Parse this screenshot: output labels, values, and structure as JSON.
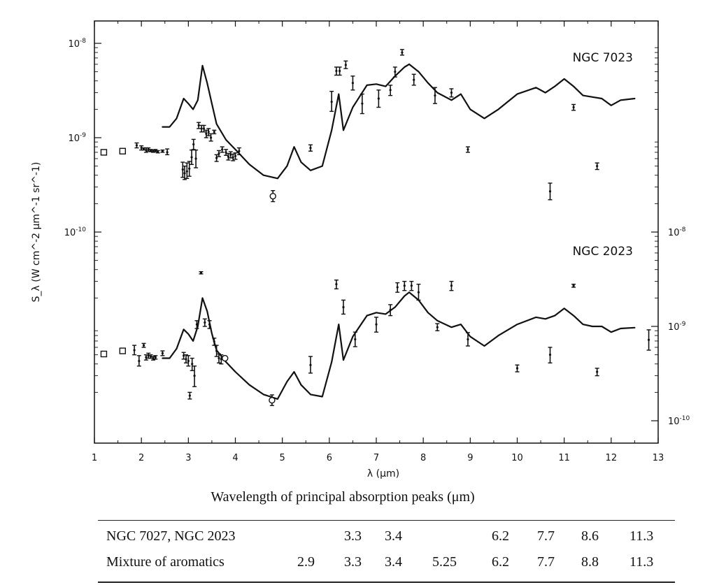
{
  "chart_data": {
    "type": "line",
    "xlabel": "λ (μm)",
    "ylabel": "S_λ (W cm^-2 μm^-1 sr^-1)",
    "xlim": [
      1,
      13
    ],
    "x_ticks": [
      "1",
      "2",
      "3",
      "4",
      "5",
      "6",
      "7",
      "8",
      "9",
      "10",
      "11",
      "12",
      "13"
    ],
    "log_scale_y": true,
    "left_y_ticks": [
      "10^-8",
      "10^-9",
      "10^-10"
    ],
    "right_y_ticks": [
      "10^-8",
      "10^-9",
      "10^-10"
    ],
    "grid": false,
    "panels": [
      {
        "label": "NGC 7023",
        "ylim": [
          1e-10,
          1e-08
        ],
        "model_curve": {
          "x": [
            2.45,
            2.6,
            2.75,
            2.9,
            3.0,
            3.1,
            3.2,
            3.3,
            3.4,
            3.5,
            3.6,
            3.8,
            4.0,
            4.3,
            4.6,
            4.9,
            5.1,
            5.25,
            5.4,
            5.6,
            5.85,
            6.05,
            6.2,
            6.3,
            6.5,
            6.8,
            7.0,
            7.2,
            7.4,
            7.6,
            7.7,
            7.9,
            8.1,
            8.3,
            8.6,
            8.8,
            9.0,
            9.3,
            9.6,
            10.0,
            10.4,
            10.6,
            10.8,
            11.0,
            11.2,
            11.4,
            11.6,
            11.8,
            12.0,
            12.2,
            12.5
          ],
          "y": [
            1.3e-09,
            1.3e-09,
            1.6e-09,
            2.6e-09,
            2.3e-09,
            2e-09,
            2.5e-09,
            5.8e-09,
            3.8e-09,
            2.3e-09,
            1.4e-09,
            9.5e-10,
            7.5e-10,
            5.2e-10,
            4e-10,
            3.7e-10,
            5e-10,
            8e-10,
            5.5e-10,
            4.5e-10,
            5e-10,
            1.2e-09,
            2.9e-09,
            1.2e-09,
            2.1e-09,
            3.6e-09,
            3.7e-09,
            3.5e-09,
            4.5e-09,
            5.6e-09,
            6e-09,
            5e-09,
            3.8e-09,
            3e-09,
            2.5e-09,
            2.9e-09,
            2e-09,
            1.6e-09,
            2e-09,
            2.9e-09,
            3.4e-09,
            3e-09,
            3.5e-09,
            4.2e-09,
            3.5e-09,
            2.8e-09,
            2.7e-09,
            2.6e-09,
            2.2e-09,
            2.5e-09,
            2.6e-09
          ]
        },
        "measurements": [
          {
            "x": 1.2,
            "y": 7e-10,
            "lo": 7e-10,
            "hi": 7e-10,
            "marker": "square"
          },
          {
            "x": 1.6,
            "y": 7.2e-10,
            "lo": 7.2e-10,
            "hi": 7.2e-10,
            "marker": "square"
          },
          {
            "x": 1.9,
            "y": 8.3e-10,
            "lo": 7.8e-10,
            "hi": 8.8e-10
          },
          {
            "x": 2.0,
            "y": 7.8e-10,
            "lo": 7.4e-10,
            "hi": 8.2e-10
          },
          {
            "x": 2.05,
            "y": 7.6e-10,
            "lo": 7.4e-10,
            "hi": 7.8e-10
          },
          {
            "x": 2.1,
            "y": 7.4e-10,
            "lo": 7e-10,
            "hi": 7.8e-10
          },
          {
            "x": 2.15,
            "y": 7.5e-10,
            "lo": 7.2e-10,
            "hi": 7.8e-10
          },
          {
            "x": 2.2,
            "y": 7.3e-10,
            "lo": 7.1e-10,
            "hi": 7.5e-10
          },
          {
            "x": 2.25,
            "y": 7.2e-10,
            "lo": 7e-10,
            "hi": 7.4e-10
          },
          {
            "x": 2.3,
            "y": 7.3e-10,
            "lo": 7.1e-10,
            "hi": 7.5e-10
          },
          {
            "x": 2.35,
            "y": 7.1e-10,
            "lo": 6.9e-10,
            "hi": 7.3e-10
          },
          {
            "x": 2.45,
            "y": 7.2e-10,
            "lo": 7e-10,
            "hi": 7.4e-10
          },
          {
            "x": 2.55,
            "y": 7e-10,
            "lo": 6.6e-10,
            "hi": 7.6e-10
          },
          {
            "x": 2.88,
            "y": 4.6e-10,
            "lo": 3.8e-10,
            "hi": 5.5e-10
          },
          {
            "x": 2.92,
            "y": 4.2e-10,
            "lo": 3.6e-10,
            "hi": 5e-10
          },
          {
            "x": 2.97,
            "y": 4.4e-10,
            "lo": 3.7e-10,
            "hi": 5.4e-10
          },
          {
            "x": 3.02,
            "y": 4.7e-10,
            "lo": 3.9e-10,
            "hi": 5.6e-10
          },
          {
            "x": 3.07,
            "y": 6.2e-10,
            "lo": 5.2e-10,
            "hi": 7.4e-10
          },
          {
            "x": 3.11,
            "y": 8.5e-10,
            "lo": 7.5e-10,
            "hi": 9.6e-10
          },
          {
            "x": 3.16,
            "y": 6e-10,
            "lo": 4.8e-10,
            "hi": 7.4e-10
          },
          {
            "x": 3.22,
            "y": 1.35e-09,
            "lo": 1.25e-09,
            "hi": 1.45e-09
          },
          {
            "x": 3.28,
            "y": 1.25e-09,
            "lo": 1.15e-09,
            "hi": 1.35e-09
          },
          {
            "x": 3.33,
            "y": 1.25e-09,
            "lo": 1.15e-09,
            "hi": 1.35e-09
          },
          {
            "x": 3.38,
            "y": 1.1e-09,
            "lo": 1e-09,
            "hi": 1.2e-09
          },
          {
            "x": 3.43,
            "y": 1.15e-09,
            "lo": 1.05e-09,
            "hi": 1.25e-09
          },
          {
            "x": 3.48,
            "y": 1e-09,
            "lo": 9.2e-10,
            "hi": 1.1e-09
          },
          {
            "x": 3.55,
            "y": 1.15e-09,
            "lo": 1.1e-09,
            "hi": 1.2e-09
          },
          {
            "x": 3.6,
            "y": 6.1e-10,
            "lo": 5.6e-10,
            "hi": 6.6e-10
          },
          {
            "x": 3.65,
            "y": 6.8e-10,
            "lo": 6.3e-10,
            "hi": 7.3e-10
          },
          {
            "x": 3.72,
            "y": 7.5e-10,
            "lo": 7e-10,
            "hi": 8e-10
          },
          {
            "x": 3.8,
            "y": 7e-10,
            "lo": 6.5e-10,
            "hi": 7.5e-10
          },
          {
            "x": 3.85,
            "y": 6.3e-10,
            "lo": 5.8e-10,
            "hi": 6.8e-10
          },
          {
            "x": 3.9,
            "y": 6.6e-10,
            "lo": 6.1e-10,
            "hi": 7.1e-10
          },
          {
            "x": 3.95,
            "y": 6.2e-10,
            "lo": 5.7e-10,
            "hi": 6.7e-10
          },
          {
            "x": 4.0,
            "y": 6.4e-10,
            "lo": 5.9e-10,
            "hi": 6.9e-10
          },
          {
            "x": 4.08,
            "y": 7.2e-10,
            "lo": 6.6e-10,
            "hi": 7.8e-10
          },
          {
            "x": 4.8,
            "y": 2.4e-10,
            "lo": 2.1e-10,
            "hi": 2.75e-10,
            "marker": "circle"
          },
          {
            "x": 5.6,
            "y": 7.8e-10,
            "lo": 7.2e-10,
            "hi": 8.4e-10
          },
          {
            "x": 6.05,
            "y": 2.4e-09,
            "lo": 1.9e-09,
            "hi": 3.1e-09
          },
          {
            "x": 6.15,
            "y": 5.1e-09,
            "lo": 4.6e-09,
            "hi": 5.6e-09
          },
          {
            "x": 6.22,
            "y": 5.1e-09,
            "lo": 4.6e-09,
            "hi": 5.6e-09
          },
          {
            "x": 6.35,
            "y": 5.9e-09,
            "lo": 5.4e-09,
            "hi": 6.5e-09
          },
          {
            "x": 6.5,
            "y": 3.8e-09,
            "lo": 3.2e-09,
            "hi": 4.5e-09
          },
          {
            "x": 6.7,
            "y": 2.3e-09,
            "lo": 1.8e-09,
            "hi": 2.9e-09
          },
          {
            "x": 7.05,
            "y": 2.6e-09,
            "lo": 2.1e-09,
            "hi": 3.2e-09
          },
          {
            "x": 7.3,
            "y": 3.2e-09,
            "lo": 2.8e-09,
            "hi": 3.6e-09
          },
          {
            "x": 7.4,
            "y": 5e-09,
            "lo": 4.4e-09,
            "hi": 5.6e-09
          },
          {
            "x": 7.55,
            "y": 8e-09,
            "lo": 7.5e-09,
            "hi": 8.6e-09
          },
          {
            "x": 7.8,
            "y": 4.1e-09,
            "lo": 3.6e-09,
            "hi": 4.7e-09
          },
          {
            "x": 8.25,
            "y": 2.8e-09,
            "lo": 2.3e-09,
            "hi": 3.4e-09
          },
          {
            "x": 8.6,
            "y": 3e-09,
            "lo": 2.7e-09,
            "hi": 3.3e-09
          },
          {
            "x": 8.95,
            "y": 7.5e-10,
            "lo": 7e-10,
            "hi": 8e-10
          },
          {
            "x": 10.7,
            "y": 2.7e-10,
            "lo": 2.2e-10,
            "hi": 3.3e-10
          },
          {
            "x": 11.2,
            "y": 2.1e-09,
            "lo": 1.95e-09,
            "hi": 2.25e-09
          },
          {
            "x": 11.7,
            "y": 5e-10,
            "lo": 4.6e-10,
            "hi": 5.4e-10
          }
        ]
      },
      {
        "label": "NGC 2023",
        "ylim": [
          1e-10,
          1e-08
        ],
        "model_curve": {
          "x": [
            2.45,
            2.6,
            2.75,
            2.9,
            3.0,
            3.1,
            3.2,
            3.3,
            3.4,
            3.5,
            3.6,
            3.8,
            4.0,
            4.3,
            4.6,
            4.9,
            5.1,
            5.25,
            5.4,
            5.6,
            5.85,
            6.05,
            6.2,
            6.3,
            6.5,
            6.8,
            7.0,
            7.2,
            7.4,
            7.6,
            7.7,
            7.9,
            8.1,
            8.3,
            8.6,
            8.8,
            9.0,
            9.3,
            9.6,
            10.0,
            10.4,
            10.6,
            10.8,
            11.0,
            11.2,
            11.4,
            11.6,
            11.8,
            12.0,
            12.2,
            12.5
          ],
          "y": [
            4.6e-10,
            4.6e-10,
            5.8e-10,
            9.3e-10,
            8.3e-10,
            7e-10,
            1e-09,
            2e-09,
            1.45e-09,
            8.4e-10,
            5.6e-10,
            4.2e-10,
            3.3e-10,
            2.4e-10,
            1.9e-10,
            1.7e-10,
            2.6e-10,
            3.3e-10,
            2.4e-10,
            1.9e-10,
            1.8e-10,
            4.2e-10,
            1.05e-09,
            4.4e-10,
            7.8e-10,
            1.3e-09,
            1.4e-09,
            1.35e-09,
            1.6e-09,
            2.1e-09,
            2.3e-09,
            1.9e-09,
            1.4e-09,
            1.15e-09,
            9.8e-10,
            1.05e-09,
            7.8e-10,
            6.2e-10,
            8e-10,
            1.05e-09,
            1.25e-09,
            1.2e-09,
            1.3e-09,
            1.55e-09,
            1.3e-09,
            1.05e-09,
            1e-09,
            1e-09,
            8.7e-10,
            9.5e-10,
            9.7e-10
          ]
        },
        "measurements": [
          {
            "x": 1.2,
            "y": 5.1e-10,
            "lo": 5.1e-10,
            "hi": 5.1e-10,
            "marker": "square"
          },
          {
            "x": 1.6,
            "y": 5.5e-10,
            "lo": 5.5e-10,
            "hi": 5.5e-10,
            "marker": "square"
          },
          {
            "x": 1.85,
            "y": 5.6e-10,
            "lo": 5e-10,
            "hi": 6.3e-10
          },
          {
            "x": 1.95,
            "y": 4.3e-10,
            "lo": 3.8e-10,
            "hi": 4.9e-10
          },
          {
            "x": 2.05,
            "y": 6.3e-10,
            "lo": 6e-10,
            "hi": 6.6e-10
          },
          {
            "x": 2.1,
            "y": 4.7e-10,
            "lo": 4.4e-10,
            "hi": 5e-10
          },
          {
            "x": 2.15,
            "y": 4.9e-10,
            "lo": 4.6e-10,
            "hi": 5.2e-10
          },
          {
            "x": 2.2,
            "y": 4.8e-10,
            "lo": 4.6e-10,
            "hi": 5e-10
          },
          {
            "x": 2.25,
            "y": 4.6e-10,
            "lo": 4.4e-10,
            "hi": 4.8e-10
          },
          {
            "x": 2.3,
            "y": 4.7e-10,
            "lo": 4.5e-10,
            "hi": 4.9e-10
          },
          {
            "x": 2.45,
            "y": 5.2e-10,
            "lo": 4.9e-10,
            "hi": 5.5e-10
          },
          {
            "x": 2.9,
            "y": 4.9e-10,
            "lo": 4.5e-10,
            "hi": 5.3e-10
          },
          {
            "x": 2.95,
            "y": 4.5e-10,
            "lo": 4.1e-10,
            "hi": 5e-10
          },
          {
            "x": 3.0,
            "y": 4.3e-10,
            "lo": 3.8e-10,
            "hi": 4.9e-10
          },
          {
            "x": 3.03,
            "y": 1.85e-10,
            "lo": 1.7e-10,
            "hi": 2e-10
          },
          {
            "x": 3.08,
            "y": 4e-10,
            "lo": 3.4e-10,
            "hi": 4.6e-10
          },
          {
            "x": 3.13,
            "y": 3e-10,
            "lo": 2.3e-10,
            "hi": 3.8e-10
          },
          {
            "x": 3.18,
            "y": 1.05e-09,
            "lo": 9.5e-10,
            "hi": 1.15e-09
          },
          {
            "x": 3.27,
            "y": 3.7e-09,
            "lo": 3.6e-09,
            "hi": 3.8e-09
          },
          {
            "x": 3.35,
            "y": 1.1e-09,
            "lo": 1e-09,
            "hi": 1.2e-09
          },
          {
            "x": 3.45,
            "y": 1.05e-09,
            "lo": 9.5e-10,
            "hi": 1.15e-09
          },
          {
            "x": 3.55,
            "y": 6.9e-10,
            "lo": 6.3e-10,
            "hi": 7.5e-10
          },
          {
            "x": 3.6,
            "y": 5.5e-10,
            "lo": 4.8e-10,
            "hi": 6.3e-10
          },
          {
            "x": 3.65,
            "y": 4.6e-10,
            "lo": 4.1e-10,
            "hi": 5.1e-10
          },
          {
            "x": 3.7,
            "y": 4.5e-10,
            "lo": 4e-10,
            "hi": 5e-10
          },
          {
            "x": 3.78,
            "y": 4.6e-10,
            "lo": 4.6e-10,
            "hi": 4.6e-10,
            "marker": "circle"
          },
          {
            "x": 4.78,
            "y": 1.65e-10,
            "lo": 1.45e-10,
            "hi": 1.88e-10,
            "marker": "circle"
          },
          {
            "x": 5.6,
            "y": 3.9e-10,
            "lo": 3.2e-10,
            "hi": 4.8e-10
          },
          {
            "x": 6.15,
            "y": 2.8e-09,
            "lo": 2.5e-09,
            "hi": 3.1e-09
          },
          {
            "x": 6.3,
            "y": 1.6e-09,
            "lo": 1.35e-09,
            "hi": 1.9e-09
          },
          {
            "x": 6.55,
            "y": 7.3e-10,
            "lo": 6.1e-10,
            "hi": 8.7e-10
          },
          {
            "x": 7.0,
            "y": 1.05e-09,
            "lo": 8.7e-10,
            "hi": 1.25e-09
          },
          {
            "x": 7.3,
            "y": 1.5e-09,
            "lo": 1.3e-09,
            "hi": 1.7e-09
          },
          {
            "x": 7.45,
            "y": 2.6e-09,
            "lo": 2.3e-09,
            "hi": 2.9e-09
          },
          {
            "x": 7.6,
            "y": 2.7e-09,
            "lo": 2.4e-09,
            "hi": 3e-09
          },
          {
            "x": 7.75,
            "y": 2.7e-09,
            "lo": 2.4e-09,
            "hi": 3e-09
          },
          {
            "x": 7.9,
            "y": 2.3e-09,
            "lo": 1.9e-09,
            "hi": 2.8e-09
          },
          {
            "x": 8.3,
            "y": 9.8e-10,
            "lo": 9e-10,
            "hi": 1.07e-09
          },
          {
            "x": 8.6,
            "y": 2.7e-09,
            "lo": 2.4e-09,
            "hi": 3e-09
          },
          {
            "x": 8.95,
            "y": 7.3e-10,
            "lo": 6.2e-10,
            "hi": 8.6e-10
          },
          {
            "x": 10.0,
            "y": 3.6e-10,
            "lo": 3.3e-10,
            "hi": 3.9e-10
          },
          {
            "x": 10.7,
            "y": 5e-10,
            "lo": 4.1e-10,
            "hi": 6e-10
          },
          {
            "x": 11.2,
            "y": 2.7e-09,
            "lo": 2.6e-09,
            "hi": 2.8e-09
          },
          {
            "x": 11.7,
            "y": 3.3e-10,
            "lo": 3e-10,
            "hi": 3.6e-10
          },
          {
            "x": 12.8,
            "y": 7.2e-10,
            "lo": 5.6e-10,
            "hi": 9.2e-10
          }
        ]
      }
    ]
  },
  "table": {
    "caption": "Wavelength of principal absorption peaks (μm)",
    "rows": [
      {
        "label": "NGC 7027, NGC 2023",
        "values": [
          "",
          "3.3",
          "3.4",
          "",
          "6.2",
          "7.7",
          "8.6",
          "11.3"
        ]
      },
      {
        "label": "Mixture of aromatics",
        "values": [
          "2.9",
          "3.3",
          "3.4",
          "5.25",
          "6.2",
          "7.7",
          "8.8",
          "11.3"
        ]
      }
    ]
  }
}
